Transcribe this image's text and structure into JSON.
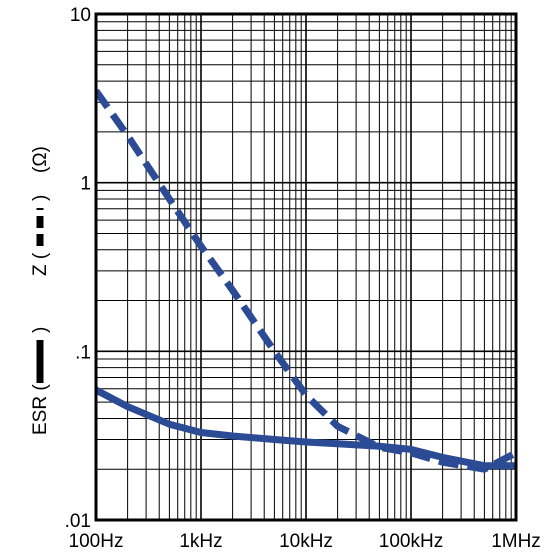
{
  "chart_data": {
    "type": "line",
    "x_scale": "log",
    "y_scale": "log",
    "xlim": [
      100,
      1000000
    ],
    "ylim": [
      0.01,
      10
    ],
    "x_tick_values": [
      100,
      1000,
      10000,
      100000,
      1000000
    ],
    "x_tick_labels": [
      "100Hz",
      "1kHz",
      "10kHz",
      "100kHz",
      "1MHz"
    ],
    "y_tick_values": [
      10,
      1,
      0.1,
      0.01
    ],
    "y_tick_labels": [
      "10",
      "1",
      ".1",
      ".01"
    ],
    "ylabel_parts": [
      "ESR (",
      ")",
      "Z (",
      ")",
      "(Ω)"
    ],
    "grid": true,
    "series": [
      {
        "name": "Z",
        "style": "dashed",
        "color": "#2b4b95",
        "x": [
          100,
          200,
          500,
          1000,
          2000,
          5000,
          10000,
          20000,
          50000,
          100000,
          200000,
          500000,
          1000000
        ],
        "y": [
          3.5,
          1.9,
          0.8,
          0.42,
          0.23,
          0.1,
          0.055,
          0.036,
          0.027,
          0.025,
          0.022,
          0.02,
          0.025
        ]
      },
      {
        "name": "ESR",
        "style": "solid",
        "color": "#2b4b95",
        "x": [
          100,
          200,
          500,
          1000,
          2000,
          5000,
          10000,
          20000,
          50000,
          100000,
          200000,
          500000,
          1000000
        ],
        "y": [
          0.059,
          0.047,
          0.037,
          0.033,
          0.0315,
          0.03,
          0.029,
          0.0283,
          0.0274,
          0.0262,
          0.0235,
          0.021,
          0.021
        ]
      }
    ]
  }
}
